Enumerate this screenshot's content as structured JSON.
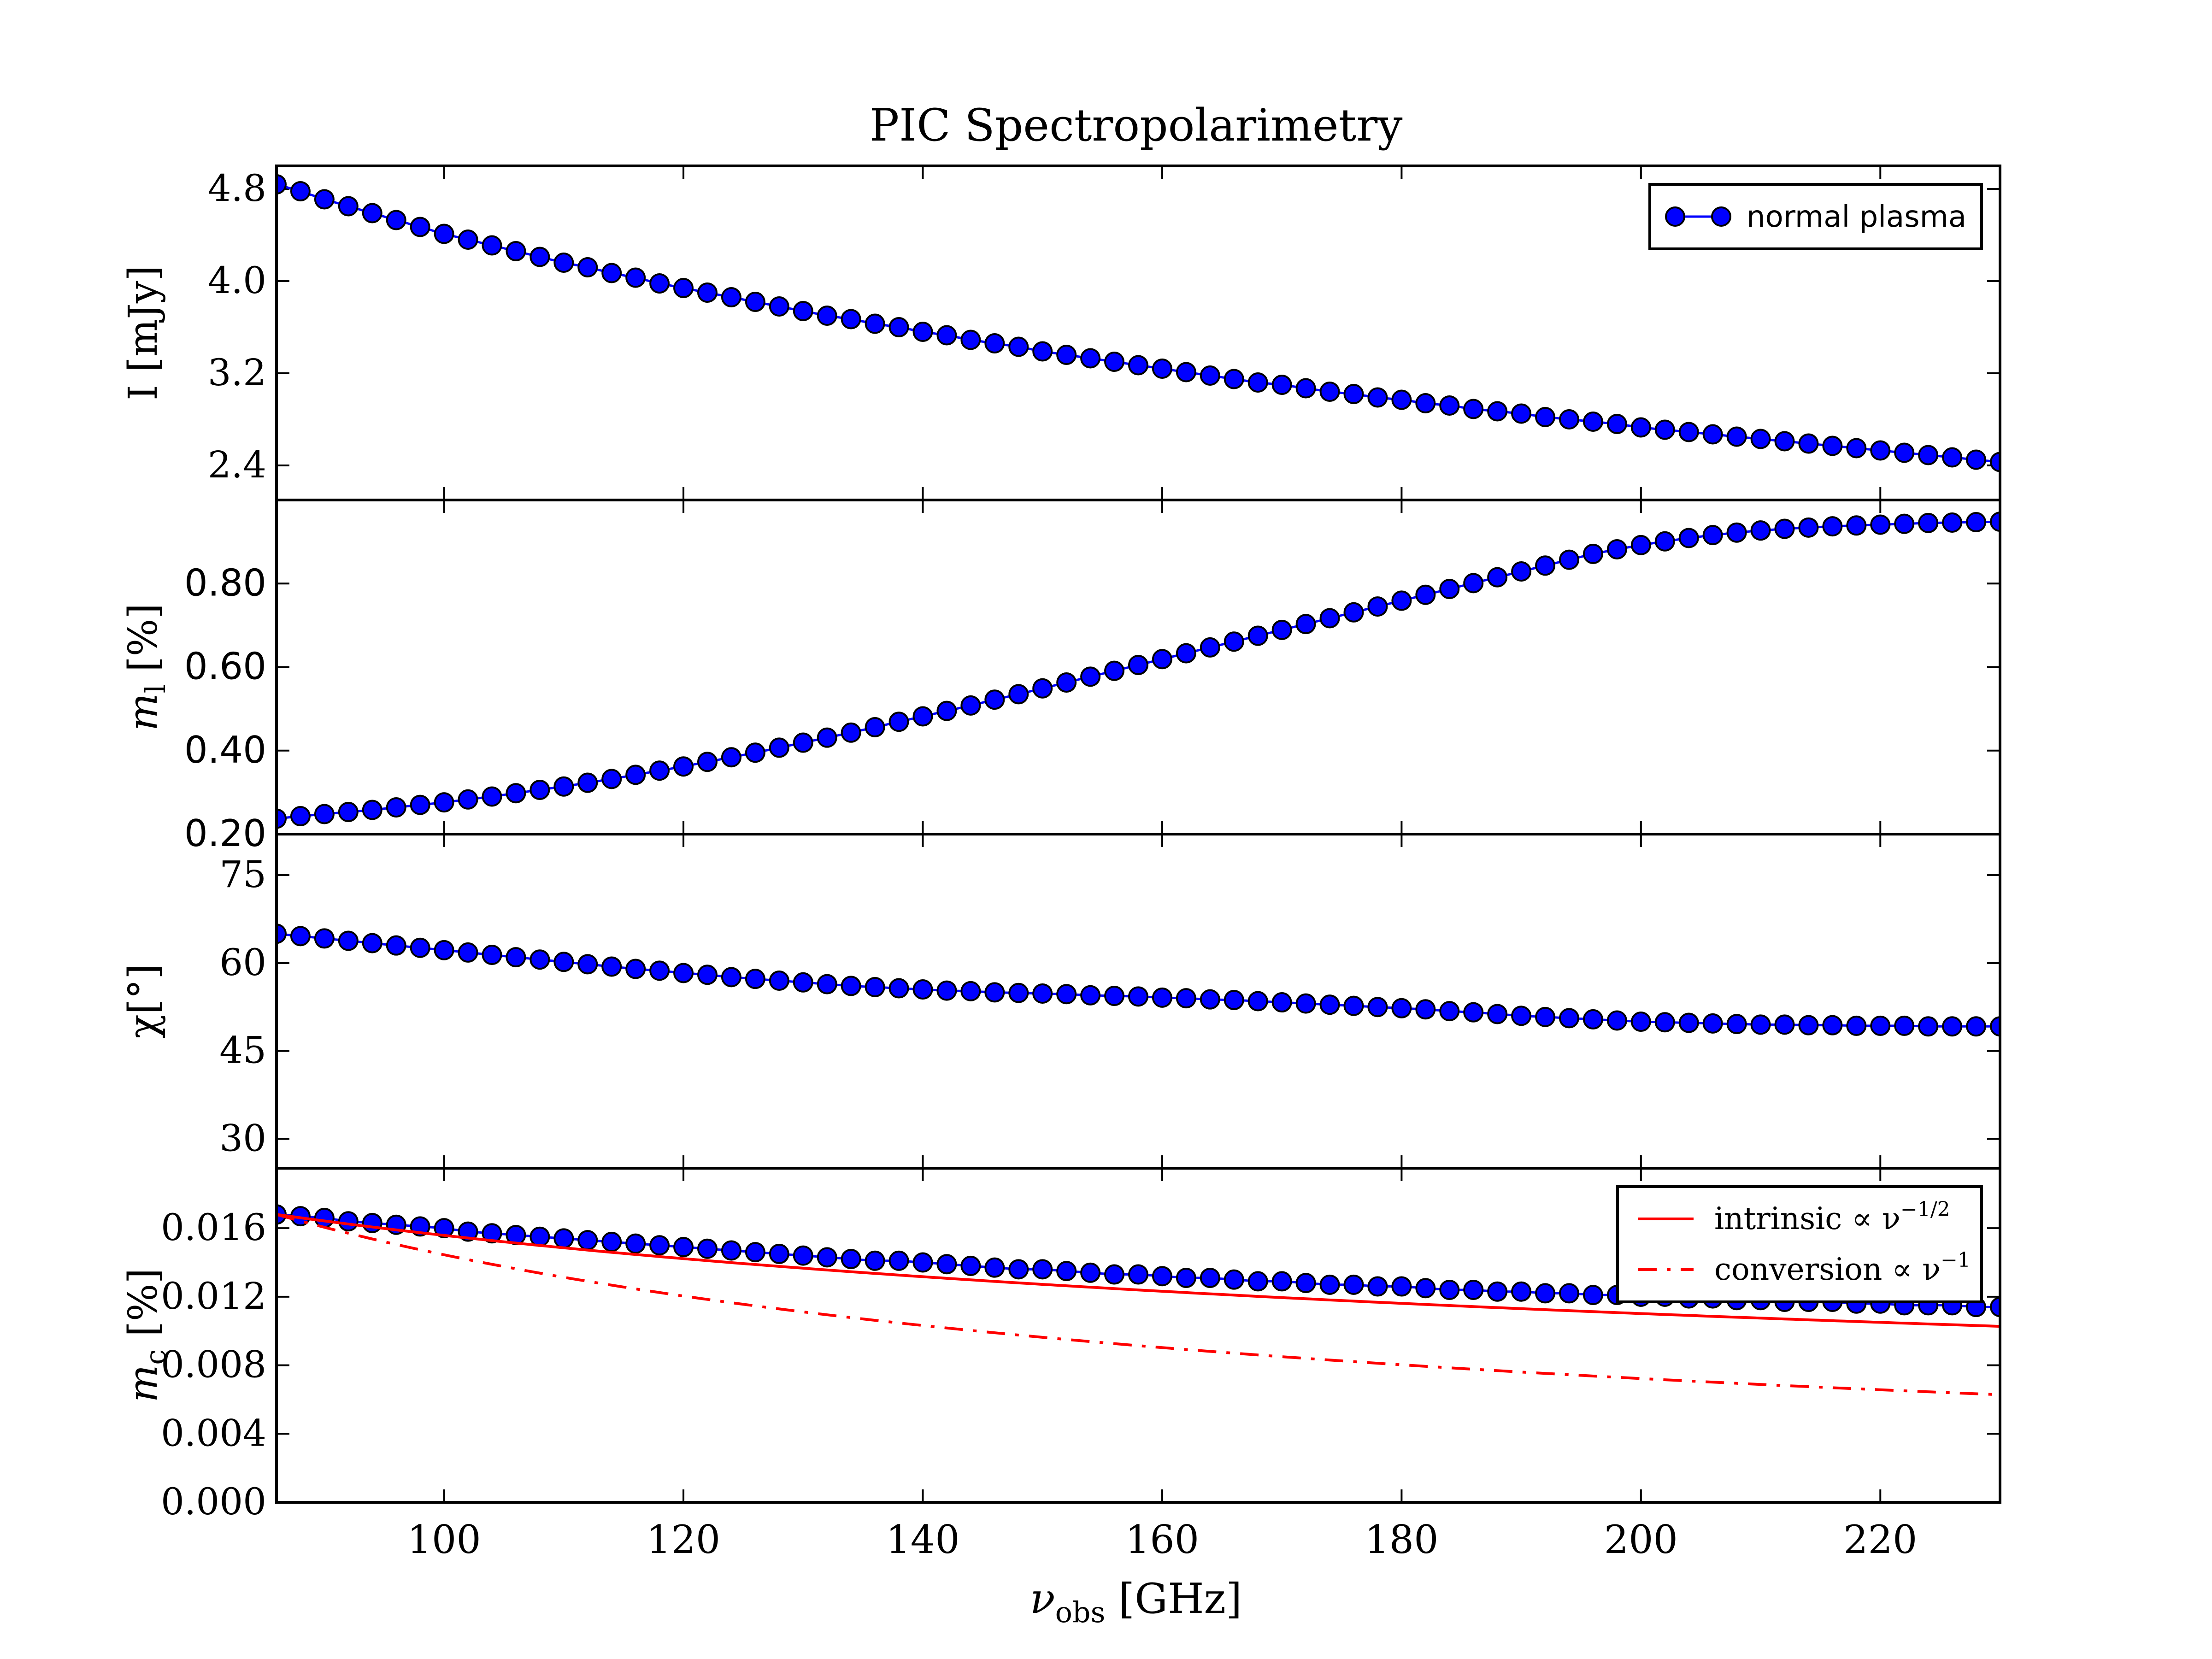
{
  "chart_data": {
    "title": "PIC Spectropolarimetry",
    "xlabel": "ν_obs [GHz]",
    "xlabel_main": "ν",
    "xlabel_sub": "obs",
    "xlabel_unit": " [GHz]",
    "xlim": [
      86,
      230
    ],
    "xticks": [
      100,
      120,
      140,
      160,
      180,
      200,
      220
    ],
    "xtick_labels": [
      "100",
      "120",
      "140",
      "160",
      "180",
      "200",
      "220"
    ],
    "x": [
      86,
      88,
      90,
      92,
      94,
      96,
      98,
      100,
      102,
      104,
      106,
      108,
      110,
      112,
      114,
      116,
      118,
      120,
      122,
      124,
      126,
      128,
      130,
      132,
      134,
      136,
      138,
      140,
      142,
      144,
      146,
      148,
      150,
      152,
      154,
      156,
      158,
      160,
      162,
      164,
      166,
      168,
      170,
      172,
      174,
      176,
      178,
      180,
      182,
      184,
      186,
      188,
      190,
      192,
      194,
      196,
      198,
      200,
      202,
      204,
      206,
      208,
      210,
      212,
      214,
      216,
      218,
      220,
      222,
      224,
      226,
      228,
      230
    ],
    "panels": [
      {
        "type": "line",
        "ylabel": "I [mJy]",
        "ylabel_main": "I",
        "ylabel_sub": "",
        "ylabel_unit": " [mJy]",
        "ylim": [
          2.1,
          5.0
        ],
        "yticks": [
          2.4,
          3.2,
          4.0,
          4.8
        ],
        "ytick_labels": [
          "2.4",
          "3.2",
          "4.0",
          "4.8"
        ],
        "tick_font": "serif",
        "series": [
          {
            "name": "normal plasma",
            "color": "#0000ff",
            "marker": "circle",
            "values": [
              4.84,
              4.78,
              4.71,
              4.65,
              4.59,
              4.53,
              4.47,
              4.41,
              4.36,
              4.31,
              4.26,
              4.21,
              4.16,
              4.12,
              4.07,
              4.03,
              3.98,
              3.94,
              3.9,
              3.86,
              3.82,
              3.78,
              3.74,
              3.7,
              3.67,
              3.63,
              3.6,
              3.56,
              3.53,
              3.49,
              3.46,
              3.43,
              3.39,
              3.36,
              3.33,
              3.3,
              3.27,
              3.24,
              3.21,
              3.18,
              3.15,
              3.12,
              3.1,
              3.07,
              3.04,
              3.02,
              2.99,
              2.97,
              2.94,
              2.92,
              2.89,
              2.87,
              2.85,
              2.82,
              2.8,
              2.78,
              2.76,
              2.73,
              2.71,
              2.69,
              2.67,
              2.65,
              2.63,
              2.61,
              2.59,
              2.57,
              2.55,
              2.53,
              2.51,
              2.49,
              2.47,
              2.45,
              2.43
            ]
          }
        ]
      },
      {
        "type": "line",
        "ylabel": "m_l [%]",
        "ylabel_main": "m",
        "ylabel_sub": "l",
        "ylabel_unit": " [%]",
        "ylim": [
          0.2,
          1.0
        ],
        "yticks": [
          0.2,
          0.4,
          0.6,
          0.8
        ],
        "ytick_labels": [
          "0.20",
          "0.40",
          "0.60",
          "0.80"
        ],
        "tick_font": "sans",
        "series": [
          {
            "name": "normal plasma",
            "color": "#0000ff",
            "marker": "circle",
            "values": [
              0.237,
              0.243,
              0.248,
              0.253,
              0.258,
              0.264,
              0.27,
              0.276,
              0.283,
              0.29,
              0.298,
              0.306,
              0.314,
              0.323,
              0.332,
              0.342,
              0.352,
              0.362,
              0.373,
              0.384,
              0.395,
              0.407,
              0.419,
              0.431,
              0.443,
              0.456,
              0.469,
              0.482,
              0.495,
              0.508,
              0.522,
              0.535,
              0.549,
              0.563,
              0.577,
              0.591,
              0.605,
              0.619,
              0.633,
              0.647,
              0.661,
              0.675,
              0.689,
              0.703,
              0.717,
              0.731,
              0.745,
              0.759,
              0.773,
              0.787,
              0.801,
              0.815,
              0.829,
              0.843,
              0.857,
              0.871,
              0.882,
              0.892,
              0.901,
              0.909,
              0.916,
              0.922,
              0.927,
              0.931,
              0.934,
              0.937,
              0.939,
              0.941,
              0.943,
              0.945,
              0.946,
              0.947,
              0.948
            ]
          }
        ]
      },
      {
        "type": "line",
        "ylabel": "χ[°]",
        "ylabel_main": "χ",
        "ylabel_sub": "",
        "ylabel_unit": "[°]",
        "ylim": [
          25,
          82
        ],
        "yticks": [
          30,
          45,
          60,
          75
        ],
        "ytick_labels": [
          "30",
          "45",
          "60",
          "75"
        ],
        "tick_font": "serif",
        "series": [
          {
            "name": "normal plasma",
            "color": "#0000ff",
            "marker": "circle",
            "values": [
              65.0,
              64.6,
              64.2,
              63.8,
              63.4,
              63.0,
              62.6,
              62.2,
              61.8,
              61.4,
              61.0,
              60.6,
              60.2,
              59.8,
              59.4,
              59.0,
              58.7,
              58.3,
              58.0,
              57.6,
              57.3,
              57.0,
              56.7,
              56.4,
              56.1,
              55.9,
              55.7,
              55.5,
              55.3,
              55.2,
              55.0,
              54.9,
              54.8,
              54.7,
              54.5,
              54.4,
              54.3,
              54.1,
              54.0,
              53.8,
              53.7,
              53.5,
              53.3,
              53.1,
              52.9,
              52.7,
              52.5,
              52.3,
              52.1,
              51.8,
              51.6,
              51.3,
              51.0,
              50.8,
              50.6,
              50.4,
              50.2,
              50.0,
              49.9,
              49.8,
              49.7,
              49.6,
              49.5,
              49.5,
              49.4,
              49.4,
              49.3,
              49.3,
              49.3,
              49.2,
              49.2,
              49.2,
              49.2
            ]
          }
        ]
      },
      {
        "type": "line",
        "ylabel": "m_c [%]",
        "ylabel_main": "m",
        "ylabel_sub": "c",
        "ylabel_unit": " [%]",
        "ylim": [
          0.0,
          0.0195
        ],
        "yticks": [
          0.0,
          0.004,
          0.008,
          0.012,
          0.016
        ],
        "ytick_labels": [
          "0.000",
          "0.004",
          "0.008",
          "0.012",
          "0.016"
        ],
        "tick_font": "serif",
        "series": [
          {
            "name": "normal plasma",
            "color": "#0000ff",
            "marker": "circle",
            "values": [
              0.0168,
              0.0167,
              0.0166,
              0.0164,
              0.0163,
              0.0162,
              0.0161,
              0.016,
              0.0158,
              0.0157,
              0.0156,
              0.0155,
              0.0154,
              0.0153,
              0.0152,
              0.0151,
              0.015,
              0.0149,
              0.0148,
              0.0147,
              0.0146,
              0.0145,
              0.0144,
              0.0143,
              0.0142,
              0.0141,
              0.0141,
              0.014,
              0.0139,
              0.0138,
              0.0137,
              0.0136,
              0.0136,
              0.0135,
              0.0134,
              0.0133,
              0.0133,
              0.0132,
              0.0131,
              0.0131,
              0.013,
              0.0129,
              0.0129,
              0.0128,
              0.0127,
              0.0127,
              0.0126,
              0.0126,
              0.0125,
              0.0124,
              0.0124,
              0.0123,
              0.0123,
              0.0122,
              0.0122,
              0.0121,
              0.0121,
              0.012,
              0.012,
              0.0119,
              0.0119,
              0.0118,
              0.0118,
              0.0117,
              0.0117,
              0.0117,
              0.0116,
              0.0116,
              0.0115,
              0.0115,
              0.0115,
              0.0114,
              0.0114
            ]
          },
          {
            "name": "intrinsic ∝ ν^−1/2",
            "color": "#ff0000",
            "line_style": "solid",
            "law": "power",
            "exponent": -0.5,
            "anchor_x": 86,
            "anchor_y": 0.0168
          },
          {
            "name": "conversion ∝ ν^−1",
            "color": "#ff0000",
            "line_style": "dash-dot",
            "law": "power",
            "exponent": -1,
            "anchor_x": 86,
            "anchor_y": 0.0168
          }
        ]
      }
    ],
    "legends": [
      {
        "panel": 0,
        "placement": "upper right",
        "entries": [
          {
            "label": "normal plasma",
            "main": "normal plasma",
            "sup": ""
          }
        ]
      },
      {
        "panel": 3,
        "placement": "upper right",
        "entries": [
          {
            "label": "intrinsic ∝ ν^−1/2",
            "main": "intrinsic ∝ ν",
            "sup": "−1/2"
          },
          {
            "label": "conversion ∝ ν^−1",
            "main": "conversion ∝ ν",
            "sup": "−1"
          }
        ]
      }
    ],
    "grid": false
  }
}
